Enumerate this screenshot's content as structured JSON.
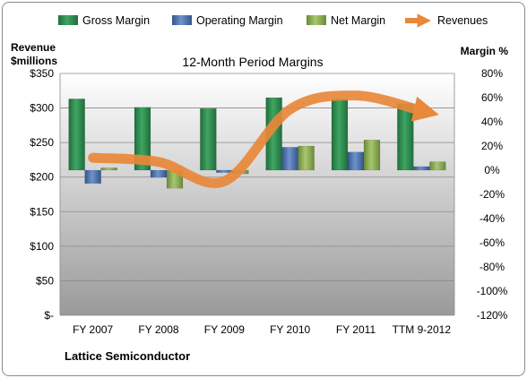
{
  "chart_data": {
    "type": "bar",
    "title": "12-Month Period Margins",
    "categories": [
      "FY 2007",
      "FY 2008",
      "FY 2009",
      "FY 2010",
      "FY 2011",
      "TTM 9-2012"
    ],
    "series": [
      {
        "name": "Gross Margin",
        "axis": "right",
        "unit": "%",
        "values": [
          59,
          52,
          51,
          60,
          59,
          55
        ]
      },
      {
        "name": "Operating Margin",
        "axis": "right",
        "unit": "%",
        "values": [
          -11,
          -6,
          -2,
          19,
          15,
          3
        ]
      },
      {
        "name": "Net Margin",
        "axis": "right",
        "unit": "%",
        "values": [
          2,
          -15,
          -3,
          20,
          25,
          7
        ]
      },
      {
        "name": "Revenues",
        "type": "line",
        "axis": "left",
        "unit": "$millions",
        "values": [
          228,
          222,
          194,
          298,
          318,
          296
        ]
      }
    ],
    "left_axis": {
      "label_line1": "Revenue",
      "label_line2": "$millions",
      "min": 0,
      "max": 350,
      "step": 50,
      "ticks": [
        "$-",
        "$50",
        "$100",
        "$150",
        "$200",
        "$250",
        "$300",
        "$350"
      ]
    },
    "right_axis": {
      "label": "Margin %",
      "min": -120,
      "max": 80,
      "step": 20,
      "ticks": [
        "-120%",
        "-100%",
        "-80%",
        "-60%",
        "-40%",
        "-20%",
        "0%",
        "20%",
        "40%",
        "60%",
        "80%"
      ]
    },
    "legend_position": "top",
    "grid": true,
    "colors": {
      "Gross Margin": "#2e8b4e",
      "Operating Margin": "#4a6fb0",
      "Net Margin": "#8fae55",
      "Revenues": "#e8883a"
    }
  },
  "footer": {
    "company": "Lattice Semiconductor"
  }
}
